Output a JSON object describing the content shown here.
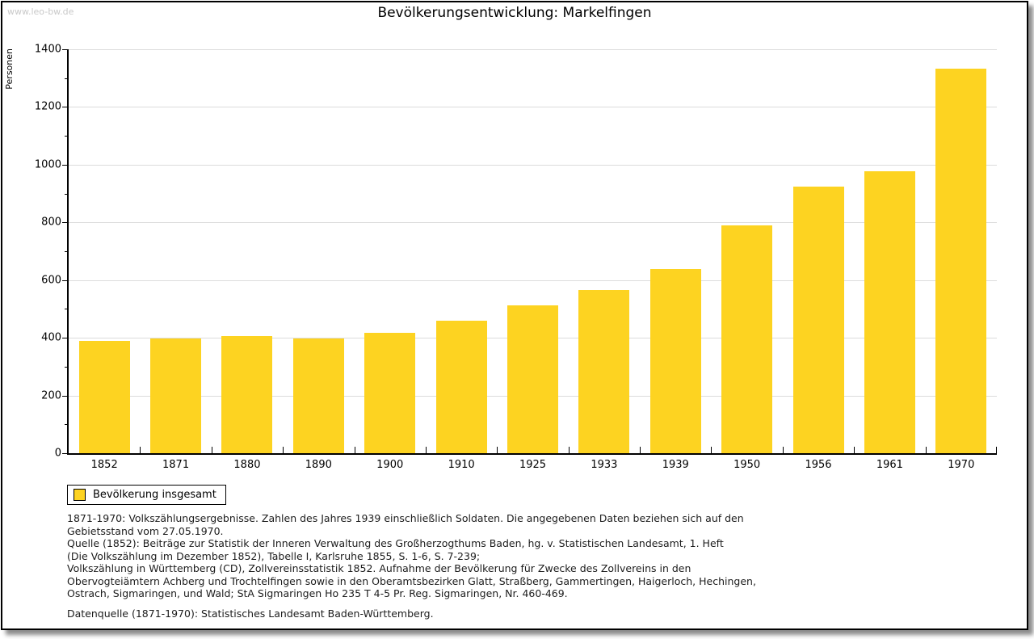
{
  "page": {
    "watermark": "www.leo-bw.de",
    "title": "Bevölkerungsentwicklung: Markelfingen"
  },
  "chart_data": {
    "type": "bar",
    "title": "Bevölkerungsentwicklung: Markelfingen",
    "xlabel": "",
    "ylabel": "Personen",
    "ylim": [
      0,
      1400
    ],
    "ytick_step": 200,
    "yminor_step": 100,
    "grid": true,
    "legend_position": "bottom-left",
    "categories": [
      "1852",
      "1871",
      "1880",
      "1890",
      "1900",
      "1910",
      "1925",
      "1933",
      "1939",
      "1950",
      "1956",
      "1961",
      "1970"
    ],
    "series": [
      {
        "name": "Bevölkerung insgesamt",
        "color": "#FDD321",
        "values": [
          390,
          399,
          407,
          398,
          417,
          458,
          512,
          567,
          638,
          789,
          925,
          976,
          1333
        ]
      }
    ]
  },
  "legend": {
    "label": "Bevölkerung insgesamt",
    "swatch_color": "#FDD321"
  },
  "footnotes": {
    "lines": [
      "1871-1970: Volkszählungsergebnisse. Zahlen des Jahres 1939 einschließlich Soldaten. Die angegebenen Daten beziehen sich auf den",
      "Gebietsstand vom 27.05.1970.",
      "Quelle (1852): Beiträge zur Statistik der Inneren Verwaltung des Großherzogthums Baden, hg. v. Statistischen Landesamt, 1. Heft",
      "(Die Volkszählung im Dezember 1852), Tabelle I, Karlsruhe 1855, S. 1-6, S. 7-239;",
      "Volkszählung in Württemberg (CD), Zollvereinsstatistik 1852. Aufnahme der Bevölkerung für Zwecke des Zollvereins in den",
      "Obervogteiämtern Achberg und Trochtelfingen sowie in den Oberamtsbezirken Glatt, Straßberg, Gammertingen, Haigerloch, Hechingen,",
      "Ostrach, Sigmaringen, und Wald; StA Sigmaringen Ho 235 T 4-5 Pr. Reg. Sigmaringen, Nr. 460-469."
    ],
    "datasource": "Datenquelle (1871-1970): Statistisches Landesamt Baden-Württemberg."
  },
  "colors": {
    "bar": "#FDD321",
    "gridline": "#dcdcdc",
    "axis": "#000000",
    "watermark": "#c9c9c9",
    "text": "#1c1c1c"
  }
}
